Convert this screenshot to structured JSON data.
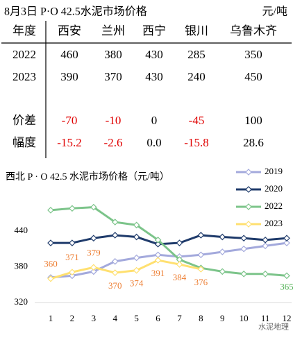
{
  "table": {
    "title": "8月3日 P·O 42.5水泥市场价格",
    "unit": "元/吨",
    "header": [
      "年度",
      "西安",
      "兰州",
      "西宁",
      "银川",
      "乌鲁木齐"
    ],
    "rows": [
      [
        "2022",
        "460",
        "380",
        "430",
        "285",
        "350"
      ],
      [
        "2023",
        "390",
        "370",
        "430",
        "240",
        "450"
      ],
      [
        "价差",
        "-70",
        "-10",
        "0",
        "-45",
        "100"
      ],
      [
        "幅度",
        "-15.2",
        "-2.6",
        "0.0",
        "-15.8",
        "28.6"
      ]
    ]
  },
  "chart_data": {
    "type": "line",
    "title": "西北 P · O 42.5 水泥市场价格（元/吨）",
    "categories": [
      "1",
      "2",
      "3",
      "4",
      "5",
      "6",
      "7",
      "8",
      "9",
      "10",
      "11",
      "12"
    ],
    "ylim": [
      320,
      490
    ],
    "yticks": [
      320,
      380,
      440
    ],
    "series": [
      {
        "name": "2019",
        "color": "#a3a9dc",
        "values": [
          362,
          365,
          372,
          389,
          395,
          400,
          397,
          400,
          405,
          410,
          415,
          420
        ]
      },
      {
        "name": "2020",
        "color": "#1f3b6b",
        "values": [
          420,
          420,
          428,
          433,
          430,
          418,
          420,
          433,
          430,
          428,
          425,
          428
        ]
      },
      {
        "name": "2022",
        "color": "#7cc48a",
        "values": [
          475,
          478,
          480,
          455,
          450,
          425,
          392,
          378,
          372,
          368,
          368,
          365
        ],
        "value_labels": [
          null,
          null,
          null,
          null,
          null,
          null,
          null,
          null,
          null,
          null,
          null,
          "365"
        ]
      },
      {
        "name": "2023",
        "color": "#ffe070",
        "values": [
          360,
          371,
          379,
          370,
          374,
          391,
          384,
          376,
          null,
          null,
          null,
          null
        ],
        "value_labels": [
          "360",
          "371",
          "379",
          "370",
          "374",
          "391",
          "384",
          "376",
          null,
          null,
          null,
          null
        ]
      }
    ],
    "label_colors": {
      "2022": "#4caf50",
      "2023": "#ed7d31"
    },
    "watermark": "水泥地理"
  }
}
